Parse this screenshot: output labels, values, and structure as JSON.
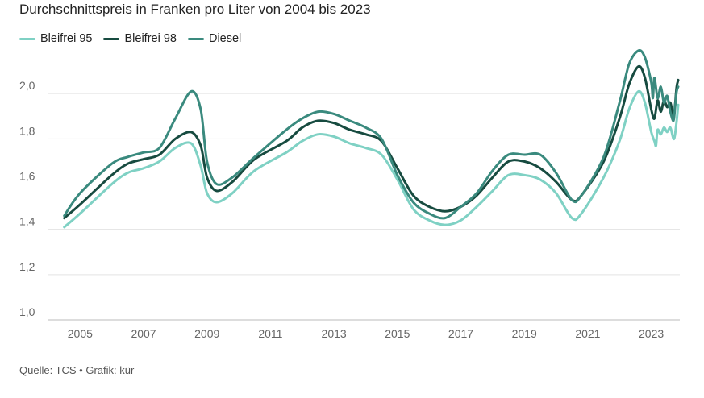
{
  "title": "Durchschnittspreis in Franken pro Liter von 2004 bis 2023",
  "source": "Quelle: TCS • Grafik: kür",
  "colors": {
    "Bleifrei 95": "#7fd1c4",
    "Bleifrei 98": "#174b40",
    "Diesel": "#3a8a7e"
  },
  "chart_data": {
    "type": "line",
    "title": "Durchschnittspreis in Franken pro Liter von 2004 bis 2023",
    "xlabel": "",
    "ylabel": "",
    "xlim": [
      2004.0,
      2023.9
    ],
    "ylim": [
      1.0,
      2.2
    ],
    "x_ticks": [
      2005,
      2007,
      2009,
      2011,
      2013,
      2015,
      2017,
      2019,
      2021,
      2023
    ],
    "y_ticks": [
      1.0,
      1.2,
      1.4,
      1.6,
      1.8,
      2.0
    ],
    "y_tick_labels": [
      "1,0",
      "1,2",
      "1,4",
      "1,6",
      "1,8",
      "2,0"
    ],
    "grid": true,
    "legend": "top-left",
    "series": [
      {
        "name": "Bleifrei 95",
        "color": "#7fd1c4",
        "points": [
          [
            2004.5,
            1.41
          ],
          [
            2005.0,
            1.47
          ],
          [
            2006.0,
            1.6
          ],
          [
            2006.5,
            1.65
          ],
          [
            2007.0,
            1.67
          ],
          [
            2007.5,
            1.7
          ],
          [
            2008.0,
            1.76
          ],
          [
            2008.5,
            1.78
          ],
          [
            2008.8,
            1.68
          ],
          [
            2009.0,
            1.56
          ],
          [
            2009.3,
            1.52
          ],
          [
            2009.8,
            1.56
          ],
          [
            2010.5,
            1.66
          ],
          [
            2011.5,
            1.74
          ],
          [
            2012.0,
            1.79
          ],
          [
            2012.5,
            1.82
          ],
          [
            2013.0,
            1.81
          ],
          [
            2013.5,
            1.78
          ],
          [
            2014.0,
            1.76
          ],
          [
            2014.5,
            1.73
          ],
          [
            2015.0,
            1.62
          ],
          [
            2015.5,
            1.49
          ],
          [
            2016.0,
            1.44
          ],
          [
            2016.5,
            1.42
          ],
          [
            2017.0,
            1.44
          ],
          [
            2017.5,
            1.5
          ],
          [
            2018.0,
            1.57
          ],
          [
            2018.5,
            1.64
          ],
          [
            2019.0,
            1.64
          ],
          [
            2019.5,
            1.62
          ],
          [
            2020.0,
            1.56
          ],
          [
            2020.5,
            1.45
          ],
          [
            2020.8,
            1.47
          ],
          [
            2021.5,
            1.63
          ],
          [
            2022.0,
            1.79
          ],
          [
            2022.3,
            1.93
          ],
          [
            2022.6,
            2.01
          ],
          [
            2022.8,
            1.96
          ],
          [
            2023.0,
            1.83
          ],
          [
            2023.1,
            1.79
          ],
          [
            2023.15,
            1.77
          ],
          [
            2023.2,
            1.84
          ],
          [
            2023.3,
            1.82
          ],
          [
            2023.4,
            1.85
          ],
          [
            2023.5,
            1.83
          ],
          [
            2023.6,
            1.85
          ],
          [
            2023.7,
            1.8
          ],
          [
            2023.75,
            1.82
          ],
          [
            2023.8,
            1.88
          ],
          [
            2023.85,
            1.95
          ]
        ]
      },
      {
        "name": "Bleifrei 98",
        "color": "#174b40",
        "points": [
          [
            2004.5,
            1.45
          ],
          [
            2005.0,
            1.51
          ],
          [
            2006.0,
            1.64
          ],
          [
            2006.5,
            1.69
          ],
          [
            2007.0,
            1.71
          ],
          [
            2007.5,
            1.73
          ],
          [
            2008.0,
            1.8
          ],
          [
            2008.5,
            1.83
          ],
          [
            2008.8,
            1.77
          ],
          [
            2009.0,
            1.63
          ],
          [
            2009.3,
            1.57
          ],
          [
            2009.8,
            1.61
          ],
          [
            2010.5,
            1.71
          ],
          [
            2011.5,
            1.79
          ],
          [
            2012.0,
            1.85
          ],
          [
            2012.5,
            1.88
          ],
          [
            2013.0,
            1.87
          ],
          [
            2013.5,
            1.84
          ],
          [
            2014.0,
            1.82
          ],
          [
            2014.5,
            1.79
          ],
          [
            2015.0,
            1.67
          ],
          [
            2015.5,
            1.55
          ],
          [
            2016.0,
            1.5
          ],
          [
            2016.5,
            1.48
          ],
          [
            2017.0,
            1.5
          ],
          [
            2017.5,
            1.55
          ],
          [
            2018.0,
            1.63
          ],
          [
            2018.5,
            1.7
          ],
          [
            2019.0,
            1.7
          ],
          [
            2019.5,
            1.67
          ],
          [
            2020.0,
            1.61
          ],
          [
            2020.5,
            1.53
          ],
          [
            2020.8,
            1.55
          ],
          [
            2021.5,
            1.7
          ],
          [
            2022.0,
            1.89
          ],
          [
            2022.3,
            2.04
          ],
          [
            2022.6,
            2.12
          ],
          [
            2022.8,
            2.07
          ],
          [
            2023.0,
            1.93
          ],
          [
            2023.1,
            1.89
          ],
          [
            2023.2,
            1.97
          ],
          [
            2023.3,
            1.92
          ],
          [
            2023.4,
            1.97
          ],
          [
            2023.5,
            1.94
          ],
          [
            2023.6,
            1.96
          ],
          [
            2023.7,
            1.9
          ],
          [
            2023.75,
            1.95
          ],
          [
            2023.8,
            2.03
          ],
          [
            2023.85,
            2.06
          ]
        ]
      },
      {
        "name": "Diesel",
        "color": "#3a8a7e",
        "points": [
          [
            2004.5,
            1.46
          ],
          [
            2005.0,
            1.56
          ],
          [
            2006.0,
            1.69
          ],
          [
            2006.5,
            1.72
          ],
          [
            2007.0,
            1.74
          ],
          [
            2007.5,
            1.76
          ],
          [
            2008.0,
            1.89
          ],
          [
            2008.5,
            2.01
          ],
          [
            2008.8,
            1.93
          ],
          [
            2009.0,
            1.7
          ],
          [
            2009.3,
            1.6
          ],
          [
            2009.8,
            1.63
          ],
          [
            2010.5,
            1.72
          ],
          [
            2011.5,
            1.84
          ],
          [
            2012.0,
            1.89
          ],
          [
            2012.5,
            1.92
          ],
          [
            2013.0,
            1.91
          ],
          [
            2013.5,
            1.88
          ],
          [
            2014.0,
            1.85
          ],
          [
            2014.5,
            1.8
          ],
          [
            2015.0,
            1.64
          ],
          [
            2015.5,
            1.52
          ],
          [
            2016.0,
            1.47
          ],
          [
            2016.5,
            1.45
          ],
          [
            2017.0,
            1.5
          ],
          [
            2017.5,
            1.56
          ],
          [
            2018.0,
            1.66
          ],
          [
            2018.5,
            1.73
          ],
          [
            2019.0,
            1.73
          ],
          [
            2019.5,
            1.73
          ],
          [
            2020.0,
            1.65
          ],
          [
            2020.5,
            1.53
          ],
          [
            2020.8,
            1.55
          ],
          [
            2021.5,
            1.72
          ],
          [
            2022.0,
            1.96
          ],
          [
            2022.3,
            2.13
          ],
          [
            2022.6,
            2.19
          ],
          [
            2022.8,
            2.16
          ],
          [
            2023.0,
            2.05
          ],
          [
            2023.05,
            1.98
          ],
          [
            2023.1,
            2.07
          ],
          [
            2023.2,
            1.98
          ],
          [
            2023.3,
            2.03
          ],
          [
            2023.4,
            1.96
          ],
          [
            2023.5,
            1.99
          ],
          [
            2023.6,
            1.92
          ],
          [
            2023.7,
            1.88
          ],
          [
            2023.75,
            1.94
          ],
          [
            2023.8,
            2.01
          ],
          [
            2023.85,
            2.03
          ]
        ]
      }
    ]
  }
}
